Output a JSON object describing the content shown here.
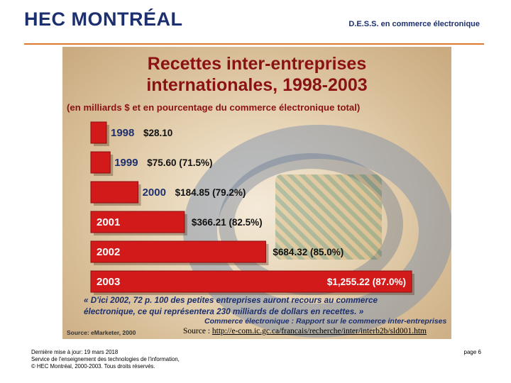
{
  "header": {
    "logo_text": "HEC MONTRÉAL",
    "program": "D.E.S.S. en commerce électronique"
  },
  "slide": {
    "title_line1": "Recettes inter-entreprises",
    "title_line2": "internationales, 1998-2003",
    "subtitle": "(en milliards $ et en pourcentage du commerce électronique total)",
    "quote_line1": "« D'ici 2002, 72 p. 100 des petites entreprises auront recours au commerce",
    "quote_line2": "électronique, ce qui représentera 230 milliards de dollars en recettes. »",
    "quote_source_line1": "Commerce électronique : Rapport sur le commerce inter-entreprises",
    "slide_source": "Source: eMarketer, 2000"
  },
  "chart_data": {
    "type": "bar",
    "orientation": "horizontal",
    "title": "Recettes inter-entreprises internationales, 1998-2003",
    "subtitle": "(en milliards $ et en pourcentage du commerce électronique total)",
    "categories": [
      "1998",
      "1999",
      "2000",
      "2001",
      "2002",
      "2003"
    ],
    "values": [
      28.1,
      75.6,
      184.85,
      366.21,
      684.32,
      1255.22
    ],
    "labels": [
      "$28.10",
      "$75.60 (71.5%)",
      "$184.85 (79.2%)",
      "$366.21 (82.5%)",
      "$684.32 (85.0%)",
      "$1,255.22 (87.0%)"
    ],
    "unit": "milliards $",
    "colors": {
      "bar": "#d21a1a",
      "bar_edge": "#8c0d0d",
      "year_outside": "#1c2f6e"
    }
  },
  "source_caption": {
    "prefix": "Source : ",
    "link": "http://e-com.ic.gc.ca/francais/recherche/inter/interb2b/sld001.htm"
  },
  "footer": {
    "line1": "Dernière mise à jour: 19 mars 2018",
    "line2": "Service de l'enseignement des technologies de l'information,",
    "line3": "© HEC Montréal, 2000-2003. Tous droits réservés.",
    "page": "page 6"
  }
}
